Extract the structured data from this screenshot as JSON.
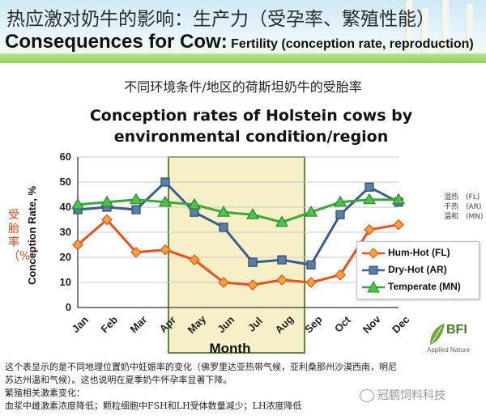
{
  "header": {
    "title_cn": "热应激对奶牛的影响：生产力（受孕率、繁殖性能）",
    "title_en_main": "Consequences for Cow:",
    "title_en_sub": " Fertility (conception rate, reproduction)"
  },
  "subtitle_cn": "不同环境条件/地区的荷斯坦奶牛的受胎率",
  "chart_data": {
    "type": "line",
    "title_line1": "Conception rates of Holstein cows by",
    "title_line2": "environmental condition/region",
    "xlabel": "Month",
    "ylabel": "Conception Rate, %",
    "ylabel_cn": "受胎率（%）",
    "categories": [
      "Jan",
      "Feb",
      "Mar",
      "Apr",
      "May",
      "Jun",
      "Jul",
      "Aug",
      "Sep",
      "Oct",
      "Nov",
      "Dec"
    ],
    "ylim": [
      0,
      60
    ],
    "yticks": [
      0,
      10,
      20,
      30,
      40,
      50,
      60
    ],
    "grid": true,
    "highlight": {
      "from": "Apr",
      "to": "Aug",
      "color": "#f6efc8",
      "border": "#5a8a3c"
    },
    "legend_position": "right",
    "series": [
      {
        "name": "Hum-Hot (FL)",
        "color": "#e8501e",
        "marker": "diamond",
        "values": [
          25,
          35,
          22,
          23,
          19,
          10,
          9,
          11,
          10,
          13,
          31,
          33
        ]
      },
      {
        "name": "Dry-Hot (AR)",
        "color": "#3a5f8a",
        "marker": "square",
        "values": [
          39,
          40,
          39,
          50,
          38,
          32,
          18,
          19,
          17,
          37,
          48,
          42
        ]
      },
      {
        "name": "Temperate (MN)",
        "color": "#3aa83a",
        "marker": "triangle",
        "values": [
          41,
          42,
          43,
          42,
          41,
          38,
          37,
          34,
          38,
          42,
          43,
          43
        ]
      }
    ]
  },
  "side_labels_cn": [
    "湿热　(FL)",
    "干热　(AR)",
    "温和　(MN)"
  ],
  "logo": {
    "name": "BFI",
    "tagline": "Applied Nature"
  },
  "footer_lines": [
    "这个表显示的是不同地理位置奶中妊娠率的变化（佛罗里达亚热带气候，亚利桑那州沙漠西南，明尼",
    "苏达州温和气候）。这也说明在夏季奶牛怀孕率显著下降。",
    "繁殖相关激素变化：",
    "血浆中雌激素浓度降低；颗粒细胞中FSH和LH受体数量减少；LH浓度降低"
  ],
  "watermark": "冠鹏饲料科技",
  "colors": {
    "title_cn": "#2a2a2a",
    "accent_red": "#d64a1a"
  }
}
